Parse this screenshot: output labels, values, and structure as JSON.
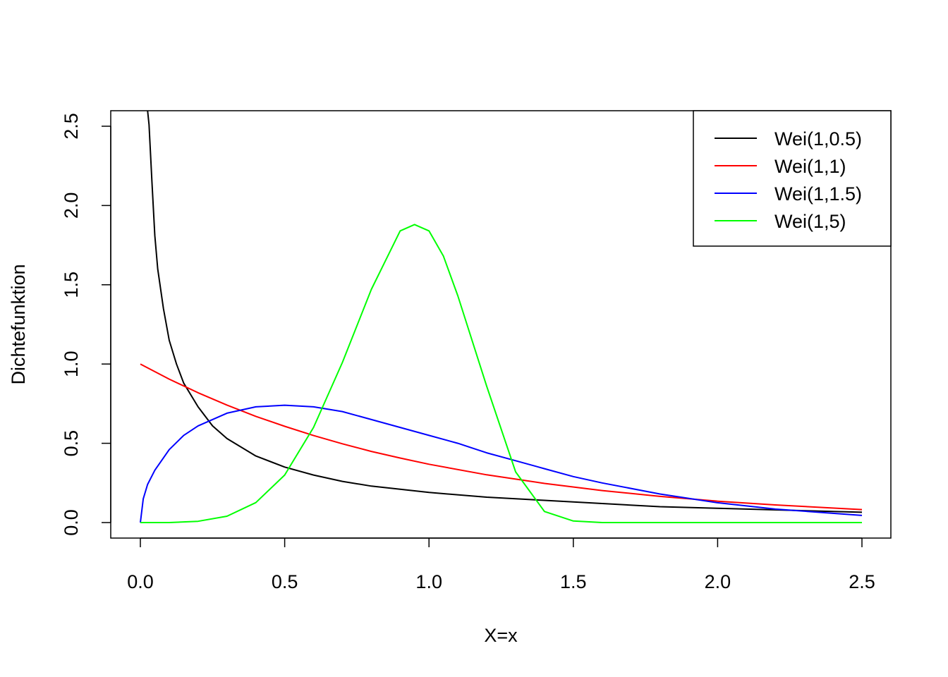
{
  "chart_data": {
    "type": "line",
    "title": "",
    "xlabel": "X=x",
    "ylabel": "Dichtefunktion",
    "xlim": [
      -0.1,
      2.6
    ],
    "ylim": [
      -0.1,
      2.6
    ],
    "x_ticks": [
      "0.0",
      "0.5",
      "1.0",
      "1.5",
      "2.0",
      "2.5"
    ],
    "y_ticks": [
      "0.0",
      "0.5",
      "1.0",
      "1.5",
      "2.0",
      "2.5"
    ],
    "grid": false,
    "legend_position": "top-right",
    "series": [
      {
        "name": "Wei(1,0.5)",
        "color": "#000000",
        "points": [
          [
            0.025,
            2.6
          ],
          [
            0.03,
            2.51
          ],
          [
            0.04,
            2.15
          ],
          [
            0.05,
            1.81
          ],
          [
            0.06,
            1.6
          ],
          [
            0.08,
            1.35
          ],
          [
            0.1,
            1.15
          ],
          [
            0.125,
            1.0
          ],
          [
            0.15,
            0.88
          ],
          [
            0.2,
            0.73
          ],
          [
            0.25,
            0.61
          ],
          [
            0.3,
            0.53
          ],
          [
            0.4,
            0.42
          ],
          [
            0.5,
            0.35
          ],
          [
            0.6,
            0.3
          ],
          [
            0.7,
            0.26
          ],
          [
            0.8,
            0.23
          ],
          [
            1.0,
            0.19
          ],
          [
            1.2,
            0.16
          ],
          [
            1.4,
            0.14
          ],
          [
            1.6,
            0.12
          ],
          [
            1.8,
            0.1
          ],
          [
            2.0,
            0.09
          ],
          [
            2.2,
            0.08
          ],
          [
            2.5,
            0.065
          ]
        ]
      },
      {
        "name": "Wei(1,1)",
        "color": "#ff0000",
        "points": [
          [
            0.0,
            1.0
          ],
          [
            0.1,
            0.905
          ],
          [
            0.2,
            0.819
          ],
          [
            0.3,
            0.741
          ],
          [
            0.4,
            0.67
          ],
          [
            0.5,
            0.607
          ],
          [
            0.6,
            0.549
          ],
          [
            0.7,
            0.497
          ],
          [
            0.8,
            0.449
          ],
          [
            0.9,
            0.407
          ],
          [
            1.0,
            0.368
          ],
          [
            1.2,
            0.301
          ],
          [
            1.4,
            0.247
          ],
          [
            1.6,
            0.202
          ],
          [
            1.8,
            0.165
          ],
          [
            2.0,
            0.135
          ],
          [
            2.2,
            0.111
          ],
          [
            2.5,
            0.082
          ]
        ]
      },
      {
        "name": "Wei(1,1.5)",
        "color": "#0000ff",
        "points": [
          [
            0.0,
            0.0
          ],
          [
            0.01,
            0.15
          ],
          [
            0.025,
            0.24
          ],
          [
            0.05,
            0.33
          ],
          [
            0.1,
            0.46
          ],
          [
            0.15,
            0.55
          ],
          [
            0.2,
            0.61
          ],
          [
            0.3,
            0.69
          ],
          [
            0.4,
            0.73
          ],
          [
            0.5,
            0.74
          ],
          [
            0.6,
            0.73
          ],
          [
            0.7,
            0.7
          ],
          [
            0.8,
            0.65
          ],
          [
            0.9,
            0.6
          ],
          [
            1.0,
            0.55
          ],
          [
            1.1,
            0.5
          ],
          [
            1.2,
            0.44
          ],
          [
            1.3,
            0.39
          ],
          [
            1.4,
            0.34
          ],
          [
            1.5,
            0.29
          ],
          [
            1.6,
            0.25
          ],
          [
            1.8,
            0.18
          ],
          [
            2.0,
            0.125
          ],
          [
            2.2,
            0.085
          ],
          [
            2.5,
            0.045
          ]
        ]
      },
      {
        "name": "Wei(1,5)",
        "color": "#00ff00",
        "points": [
          [
            0.0,
            0.0
          ],
          [
            0.1,
            0.0
          ],
          [
            0.2,
            0.008
          ],
          [
            0.3,
            0.04
          ],
          [
            0.4,
            0.126
          ],
          [
            0.5,
            0.3
          ],
          [
            0.6,
            0.6
          ],
          [
            0.7,
            1.01
          ],
          [
            0.8,
            1.47
          ],
          [
            0.9,
            1.84
          ],
          [
            0.95,
            1.88
          ],
          [
            1.0,
            1.84
          ],
          [
            1.05,
            1.68
          ],
          [
            1.1,
            1.43
          ],
          [
            1.2,
            0.86
          ],
          [
            1.3,
            0.32
          ],
          [
            1.4,
            0.07
          ],
          [
            1.5,
            0.01
          ],
          [
            1.6,
            0.0
          ],
          [
            2.0,
            0.0
          ],
          [
            2.5,
            0.0
          ]
        ]
      }
    ]
  }
}
